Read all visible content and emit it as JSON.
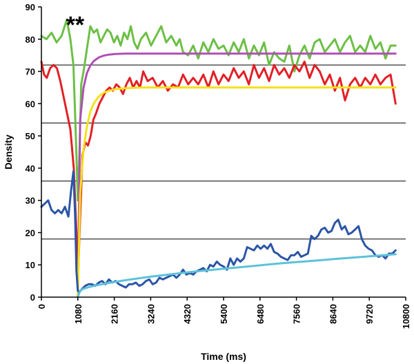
{
  "chart_data": {
    "type": "line",
    "xlabel": "Time (ms)",
    "ylabel": "Density",
    "xlim": [
      0,
      10800
    ],
    "ylim": [
      0,
      90
    ],
    "xticks": [
      0,
      1080,
      2160,
      3240,
      4320,
      5400,
      6480,
      7560,
      8640,
      9720,
      10800
    ],
    "yticks": [
      0,
      10,
      20,
      30,
      40,
      50,
      60,
      70,
      80,
      90
    ],
    "hlines": [
      18,
      36,
      54,
      72
    ],
    "annotation": {
      "text": "**",
      "x": 1000,
      "y": 85
    },
    "series": [
      {
        "color": "#6cbf45",
        "x": [
          0,
          150,
          300,
          450,
          600,
          750,
          860,
          950,
          1020,
          1080,
          1130,
          1180,
          1250,
          1350,
          1450,
          1550,
          1650,
          1750,
          1850,
          1950,
          2050,
          2150,
          2250,
          2350,
          2450,
          2550,
          2650,
          2750,
          2850,
          2950,
          3100,
          3250,
          3400,
          3550,
          3700,
          3850,
          4000,
          4100,
          4200,
          4350,
          4500,
          4650,
          4800,
          4950,
          5100,
          5250,
          5400,
          5550,
          5700,
          5850,
          6000,
          6150,
          6300,
          6450,
          6600,
          6750,
          6900,
          7050,
          7200,
          7350,
          7500,
          7650,
          7800,
          7950,
          8100,
          8250,
          8400,
          8550,
          8700,
          8850,
          9000,
          9150,
          9300,
          9450,
          9600,
          9750,
          9900,
          10050,
          10200,
          10350,
          10500
        ],
        "y": [
          81,
          80,
          82,
          79,
          81,
          86,
          80,
          72,
          50,
          30,
          45,
          66,
          70,
          77,
          84,
          82,
          83,
          79,
          81,
          83,
          82,
          79,
          81,
          78,
          82,
          80,
          84,
          79,
          77,
          80,
          82,
          78,
          81,
          84,
          79,
          81,
          78,
          80,
          76,
          75,
          78,
          74,
          79,
          76,
          80,
          77,
          78,
          75,
          79,
          76,
          80,
          74,
          78,
          75,
          79,
          72,
          76,
          74,
          73,
          78,
          70,
          75,
          78,
          74,
          79,
          80,
          76,
          78,
          80,
          76,
          79,
          81,
          76,
          78,
          76,
          81,
          77,
          79,
          74,
          78,
          78
        ]
      },
      {
        "color": "#b04fb5",
        "x": [
          1080,
          1150,
          1250,
          1350,
          1450,
          1550,
          1700,
          1850,
          2000,
          2200,
          2500,
          3000,
          4000,
          6000,
          8000,
          10500
        ],
        "y": [
          0,
          55,
          65,
          69.5,
          71.8,
          73.2,
          74.3,
          74.9,
          75.2,
          75.4,
          75.5,
          75.5,
          75.5,
          75.5,
          75.5,
          75.5
        ]
      },
      {
        "color": "#e31f26",
        "x": [
          0,
          80,
          160,
          260,
          360,
          460,
          560,
          660,
          760,
          860,
          960,
          1040,
          1080,
          1150,
          1220,
          1300,
          1380,
          1460,
          1540,
          1620,
          1720,
          1820,
          1920,
          2020,
          2120,
          2220,
          2320,
          2420,
          2520,
          2620,
          2720,
          2820,
          2920,
          3020,
          3150,
          3300,
          3450,
          3600,
          3750,
          3900,
          4050,
          4200,
          4350,
          4500,
          4650,
          4800,
          4950,
          5100,
          5250,
          5400,
          5550,
          5700,
          5850,
          6000,
          6150,
          6300,
          6450,
          6600,
          6750,
          6900,
          7050,
          7200,
          7350,
          7500,
          7650,
          7800,
          7950,
          8100,
          8250,
          8400,
          8550,
          8700,
          8850,
          9000,
          9150,
          9300,
          9450,
          9600,
          9750,
          9900,
          10050,
          10200,
          10350,
          10500
        ],
        "y": [
          73,
          69,
          68,
          71,
          72,
          71,
          67,
          62,
          57,
          52,
          40,
          20,
          5,
          25,
          44,
          48,
          47,
          50,
          55,
          57,
          60,
          62,
          64,
          65,
          64,
          66,
          65,
          63,
          66,
          68,
          65,
          67,
          65,
          70,
          67,
          68,
          65,
          67,
          64,
          66,
          65,
          69,
          66,
          68,
          66,
          69,
          65,
          70,
          66,
          69,
          67,
          71,
          68,
          70,
          66,
          72,
          68,
          71,
          67,
          72,
          69,
          71,
          68,
          72,
          70,
          73,
          68,
          72,
          70,
          66,
          69,
          64,
          68,
          61,
          66,
          68,
          65,
          68,
          66,
          69,
          66,
          68,
          69,
          60
        ]
      },
      {
        "color": "#f5e11a",
        "x": [
          1080,
          1150,
          1250,
          1350,
          1450,
          1550,
          1700,
          1850,
          2000,
          2200,
          2500,
          3000,
          4000,
          6000,
          8000,
          10500
        ],
        "y": [
          0,
          32,
          46,
          53,
          57.5,
          60,
          62.2,
          63.4,
          64,
          64.5,
          64.8,
          65,
          65,
          65,
          65,
          65
        ]
      },
      {
        "color": "#2b55a6",
        "x": [
          0,
          100,
          200,
          300,
          400,
          500,
          600,
          700,
          800,
          880,
          950,
          1000,
          1040,
          1080,
          1120,
          1200,
          1300,
          1400,
          1500,
          1600,
          1700,
          1800,
          1900,
          2000,
          2100,
          2200,
          2300,
          2400,
          2500,
          2600,
          2700,
          2800,
          2900,
          3000,
          3100,
          3200,
          3300,
          3400,
          3500,
          3600,
          3700,
          3800,
          3900,
          4000,
          4100,
          4200,
          4300,
          4400,
          4500,
          4600,
          4700,
          4800,
          4900,
          5000,
          5100,
          5200,
          5300,
          5400,
          5500,
          5600,
          5700,
          5800,
          5900,
          6000,
          6100,
          6200,
          6300,
          6400,
          6500,
          6600,
          6700,
          6800,
          6900,
          7000,
          7100,
          7200,
          7300,
          7400,
          7500,
          7600,
          7700,
          7800,
          7900,
          8000,
          8100,
          8200,
          8300,
          8400,
          8500,
          8600,
          8700,
          8800,
          8900,
          9000,
          9100,
          9200,
          9300,
          9400,
          9500,
          9600,
          9700,
          9800,
          9900,
          10000,
          10100,
          10200,
          10300,
          10400,
          10500
        ],
        "y": [
          28,
          29,
          30,
          27,
          26,
          27,
          26,
          28,
          25,
          33,
          39,
          25,
          8,
          2,
          1.5,
          2.5,
          3.5,
          4,
          4,
          3.5,
          4.5,
          5,
          4,
          5.5,
          4.5,
          5,
          4,
          3.5,
          3,
          4,
          4,
          4.5,
          3.5,
          4,
          5,
          5.5,
          4,
          4.5,
          6,
          5.5,
          6,
          6.5,
          7,
          6,
          7,
          8.5,
          7,
          7.5,
          7,
          8,
          8.5,
          9,
          8,
          10,
          9.5,
          11,
          10,
          9.5,
          8.5,
          12,
          10,
          12,
          11,
          12,
          15.5,
          15,
          14.5,
          16,
          15,
          16,
          15,
          16.5,
          14,
          13.5,
          12.5,
          12,
          11.5,
          13,
          13,
          14,
          12.5,
          13,
          13.5,
          19,
          18,
          19,
          21,
          21.5,
          20,
          20.5,
          23,
          24,
          21,
          22,
          19.5,
          20,
          21,
          22,
          18,
          16,
          15,
          14.5,
          13,
          12.5,
          13,
          12,
          13.5,
          13.5,
          14.5
        ]
      },
      {
        "color": "#5bc2d9",
        "x": [
          1080,
          1150,
          1250,
          1400,
          1600,
          1800,
          2000,
          2400,
          2800,
          3200,
          3600,
          4000,
          4600,
          5200,
          5800,
          6400,
          7000,
          7600,
          8200,
          8800,
          9400,
          10000,
          10500
        ],
        "y": [
          0,
          2,
          2.6,
          3.1,
          3.6,
          4,
          4.4,
          5.1,
          5.7,
          6.3,
          6.8,
          7.3,
          8,
          8.6,
          9.2,
          9.8,
          10.4,
          10.9,
          11.4,
          11.9,
          12.4,
          12.9,
          13.3
        ]
      }
    ]
  }
}
